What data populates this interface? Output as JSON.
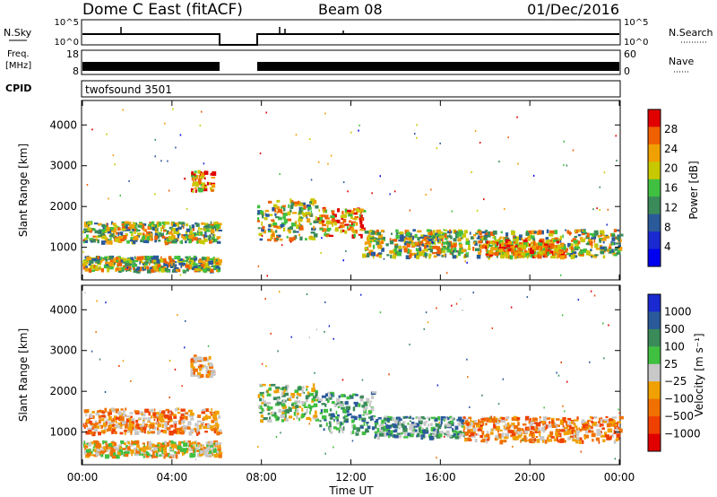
{
  "header": {
    "title": "Dome C East (fitACF)",
    "beam": "Beam 08",
    "date": "01/Dec/2016"
  },
  "panels": {
    "nsky": {
      "label": "N.Sky",
      "tick_top": "10^5",
      "tick_bottom": "10^0",
      "right_label": "N.Search",
      "right_tick_top": "10^5",
      "right_tick_bottom": "10^0"
    },
    "freq": {
      "label_line1": "Freq.",
      "label_line2": "[MHz]",
      "tick_top": "18",
      "tick_bottom": "8",
      "right_label": "Nave",
      "right_tick_top": "60",
      "right_tick_bottom": "0"
    },
    "cpid": {
      "label": "CPID",
      "value": "twofsound 3501"
    }
  },
  "chart_data": [
    {
      "type": "heatmap",
      "name": "power-panel",
      "xlabel": "",
      "ylabel": "Slant Range [km]",
      "ylim": [
        200,
        4600
      ],
      "y_ticks": [
        "4000",
        "3000",
        "2000",
        "1000"
      ],
      "colorbar": {
        "label": "Power [dB]",
        "ticks": [
          "28",
          "24",
          "20",
          "16",
          "12",
          "8",
          "4"
        ],
        "colors": [
          "#e00000",
          "#f06000",
          "#f0a000",
          "#c8c800",
          "#40c040",
          "#3a8a5a",
          "#2a5a9a",
          "#1a2ad0",
          "#0000f0"
        ]
      },
      "data_gap_hours": [
        6.1,
        7.75
      ],
      "echo_bands": [
        {
          "t0": 0.0,
          "t1": 6.1,
          "r0": 1150,
          "r1": 1650,
          "level": "mid"
        },
        {
          "t0": 0.0,
          "t1": 6.1,
          "r0": 450,
          "r1": 800,
          "level": "mid"
        },
        {
          "t0": 4.8,
          "t1": 5.8,
          "r0": 2400,
          "r1": 2900,
          "level": "high"
        },
        {
          "t0": 7.8,
          "t1": 10.5,
          "r0": 1200,
          "r1": 2200,
          "level": "mid"
        },
        {
          "t0": 10.5,
          "t1": 12.5,
          "r0": 1300,
          "r1": 2000,
          "level": "high"
        },
        {
          "t0": 12.5,
          "t1": 24.0,
          "r0": 800,
          "r1": 1450,
          "level": "mid"
        },
        {
          "t0": 18.0,
          "t1": 21.5,
          "r0": 800,
          "r1": 1200,
          "level": "high"
        }
      ]
    },
    {
      "type": "heatmap",
      "name": "velocity-panel",
      "xlabel": "Time UT",
      "ylabel": "Slant Range [km]",
      "ylim": [
        200,
        4600
      ],
      "y_ticks": [
        "4000",
        "3000",
        "2000",
        "1000"
      ],
      "x_ticks": [
        "00:00",
        "04:00",
        "08:00",
        "12:00",
        "16:00",
        "20:00",
        "00:00"
      ],
      "colorbar": {
        "label": "Velocity [m s⁻¹]",
        "ticks": [
          "1000",
          "500",
          "100",
          "25",
          "−25",
          "−100",
          "−500",
          "−1000"
        ],
        "colors": [
          "#1a2ad0",
          "#2a5a9a",
          "#3a8a5a",
          "#40c040",
          "#c8c8c8",
          "#f0a000",
          "#f07000",
          "#f04000",
          "#e00000"
        ]
      },
      "data_gap_hours": [
        6.1,
        7.75
      ],
      "echo_bands": [
        {
          "t0": 0.0,
          "t1": 6.1,
          "r0": 1000,
          "r1": 1600,
          "level": "away"
        },
        {
          "t0": 0.0,
          "t1": 6.1,
          "r0": 450,
          "r1": 800,
          "level": "mixed"
        },
        {
          "t0": 4.8,
          "t1": 5.8,
          "r0": 2400,
          "r1": 2900,
          "level": "away"
        },
        {
          "t0": 7.8,
          "t1": 10.5,
          "r0": 1300,
          "r1": 2200,
          "level": "near"
        },
        {
          "t0": 10.5,
          "t1": 13.0,
          "r0": 1000,
          "r1": 2000,
          "level": "toward"
        },
        {
          "t0": 13.0,
          "t1": 17.0,
          "r0": 900,
          "r1": 1400,
          "level": "toward"
        },
        {
          "t0": 17.0,
          "t1": 24.0,
          "r0": 800,
          "r1": 1400,
          "level": "away"
        }
      ]
    }
  ]
}
